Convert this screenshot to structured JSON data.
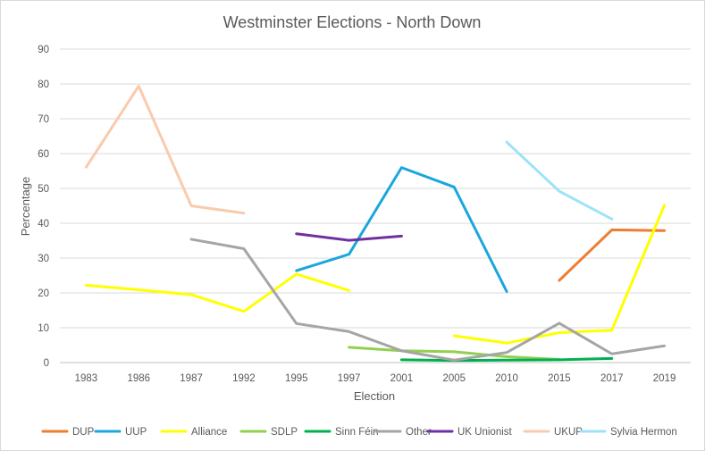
{
  "chart_data": {
    "type": "line",
    "title": "Westminster Elections - North Down",
    "xlabel": "Election",
    "ylabel": "Percentage",
    "ylim": [
      0,
      90
    ],
    "yticks": [
      0,
      10,
      20,
      30,
      40,
      50,
      60,
      70,
      80,
      90
    ],
    "grid": true,
    "legend_position": "bottom",
    "categories": [
      "1983",
      "1986",
      "1987",
      "1992",
      "1995",
      "1997",
      "2001",
      "2005",
      "2010",
      "2015",
      "2017",
      "2019"
    ],
    "series": [
      {
        "name": "DUP",
        "color": "#ED7D31",
        "values": [
          null,
          null,
          null,
          null,
          null,
          null,
          null,
          null,
          null,
          23.6,
          38.1,
          37.9
        ]
      },
      {
        "name": "UUP",
        "color": "#1AA7DE",
        "values": [
          null,
          null,
          null,
          null,
          26.4,
          31.1,
          56.0,
          50.4,
          20.4,
          null,
          null,
          null
        ]
      },
      {
        "name": "Alliance",
        "color": "#FFFF00",
        "values": [
          22.2,
          20.9,
          19.5,
          14.7,
          25.4,
          20.7,
          null,
          7.7,
          5.6,
          8.6,
          9.3,
          45.2
        ]
      },
      {
        "name": "SDLP",
        "color": "#92D050",
        "values": [
          null,
          null,
          null,
          null,
          null,
          4.4,
          3.4,
          3.1,
          1.7,
          0.9,
          null,
          null
        ]
      },
      {
        "name": "Sinn Féin",
        "color": "#00B050",
        "values": [
          null,
          null,
          null,
          null,
          null,
          null,
          0.8,
          0.6,
          0.7,
          0.8,
          1.2,
          null
        ]
      },
      {
        "name": "Other",
        "color": "#A5A5A5",
        "values": [
          null,
          null,
          35.4,
          32.7,
          11.2,
          8.9,
          3.4,
          0.7,
          2.9,
          11.3,
          2.5,
          4.8
        ]
      },
      {
        "name": "UK Unionist",
        "color": "#7030A0",
        "values": [
          null,
          null,
          null,
          null,
          37.0,
          35.1,
          36.3,
          null,
          null,
          null,
          null,
          null
        ]
      },
      {
        "name": "UKUP",
        "color": "#F8CBAD",
        "values": [
          56.1,
          79.4,
          45.0,
          42.9,
          null,
          null,
          null,
          null,
          null,
          null,
          null,
          null
        ]
      },
      {
        "name": "Sylvia Hermon",
        "color": "#9DE3F8",
        "values": [
          null,
          null,
          null,
          null,
          null,
          null,
          null,
          null,
          63.3,
          49.2,
          41.2,
          null
        ]
      }
    ]
  }
}
